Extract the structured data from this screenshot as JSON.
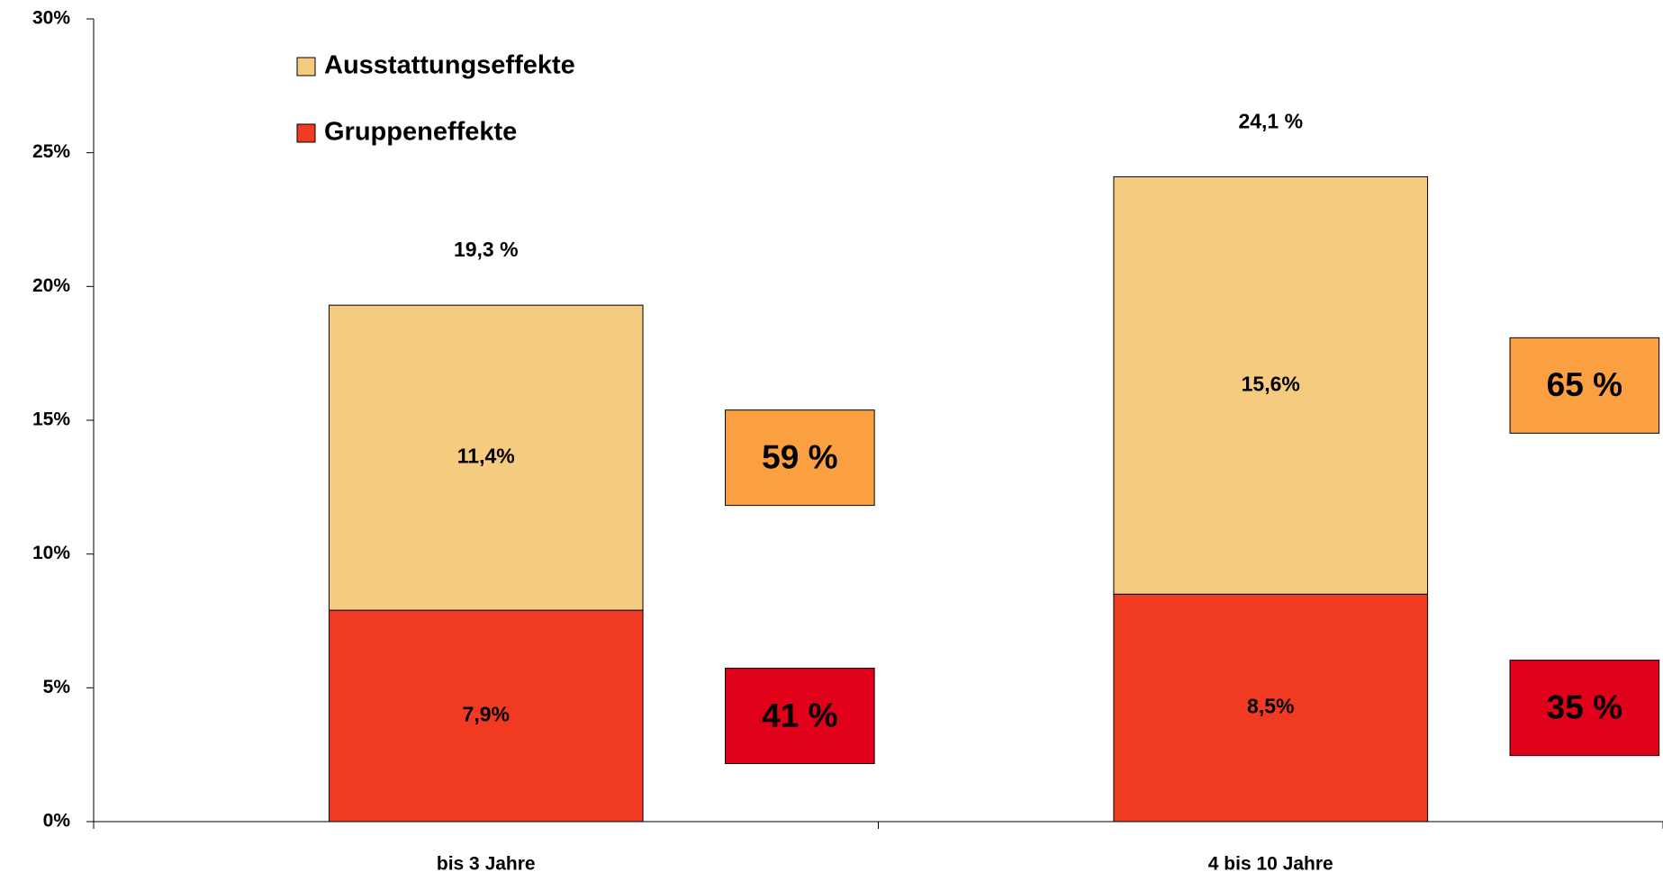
{
  "chart_data": {
    "type": "stacked_bar",
    "categories": [
      "bis 3 Jahre",
      "4 bis 10 Jahre"
    ],
    "series": [
      {
        "name": "Gruppeneffekte",
        "color": "#f03a22",
        "values": [
          7.9,
          8.5
        ],
        "value_labels": [
          "7,9%",
          "8,5%"
        ],
        "share_color": "#e0001a",
        "share_labels": [
          "41 %",
          "35 %"
        ]
      },
      {
        "name": "Ausstattungseffekte",
        "color": "#f5cc7f",
        "values": [
          11.4,
          15.6
        ],
        "value_labels": [
          "11,4%",
          "15,6%"
        ],
        "share_color": "#fba040",
        "share_labels": [
          "59 %",
          "65 %"
        ]
      }
    ],
    "total_labels": [
      "19,3 %",
      "24,1 %"
    ],
    "ylim": [
      0,
      30
    ],
    "yticks": [
      {
        "value": 0,
        "label": "0%"
      },
      {
        "value": 5,
        "label": "5%"
      },
      {
        "value": 10,
        "label": "10%"
      },
      {
        "value": 15,
        "label": "15%"
      },
      {
        "value": 20,
        "label": "20%"
      },
      {
        "value": 25,
        "label": "25%"
      },
      {
        "value": 30,
        "label": "30%"
      }
    ],
    "legend": "top-left"
  }
}
